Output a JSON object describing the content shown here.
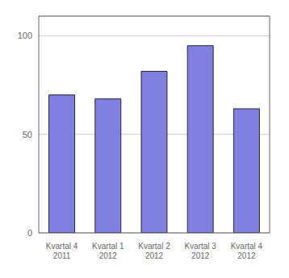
{
  "chart_data": {
    "type": "bar",
    "categories": [
      "Kvartal 4\n2011",
      "Kvartal 1\n2012",
      "Kvartal 2\n2012",
      "Kvartal 3\n2012",
      "Kvartal 4\n2012"
    ],
    "values": [
      70,
      68,
      82,
      95,
      63
    ],
    "color": "#8080E0",
    "ylim": [
      0,
      110
    ],
    "yticks": [
      0,
      50,
      100
    ],
    "grid": true
  }
}
